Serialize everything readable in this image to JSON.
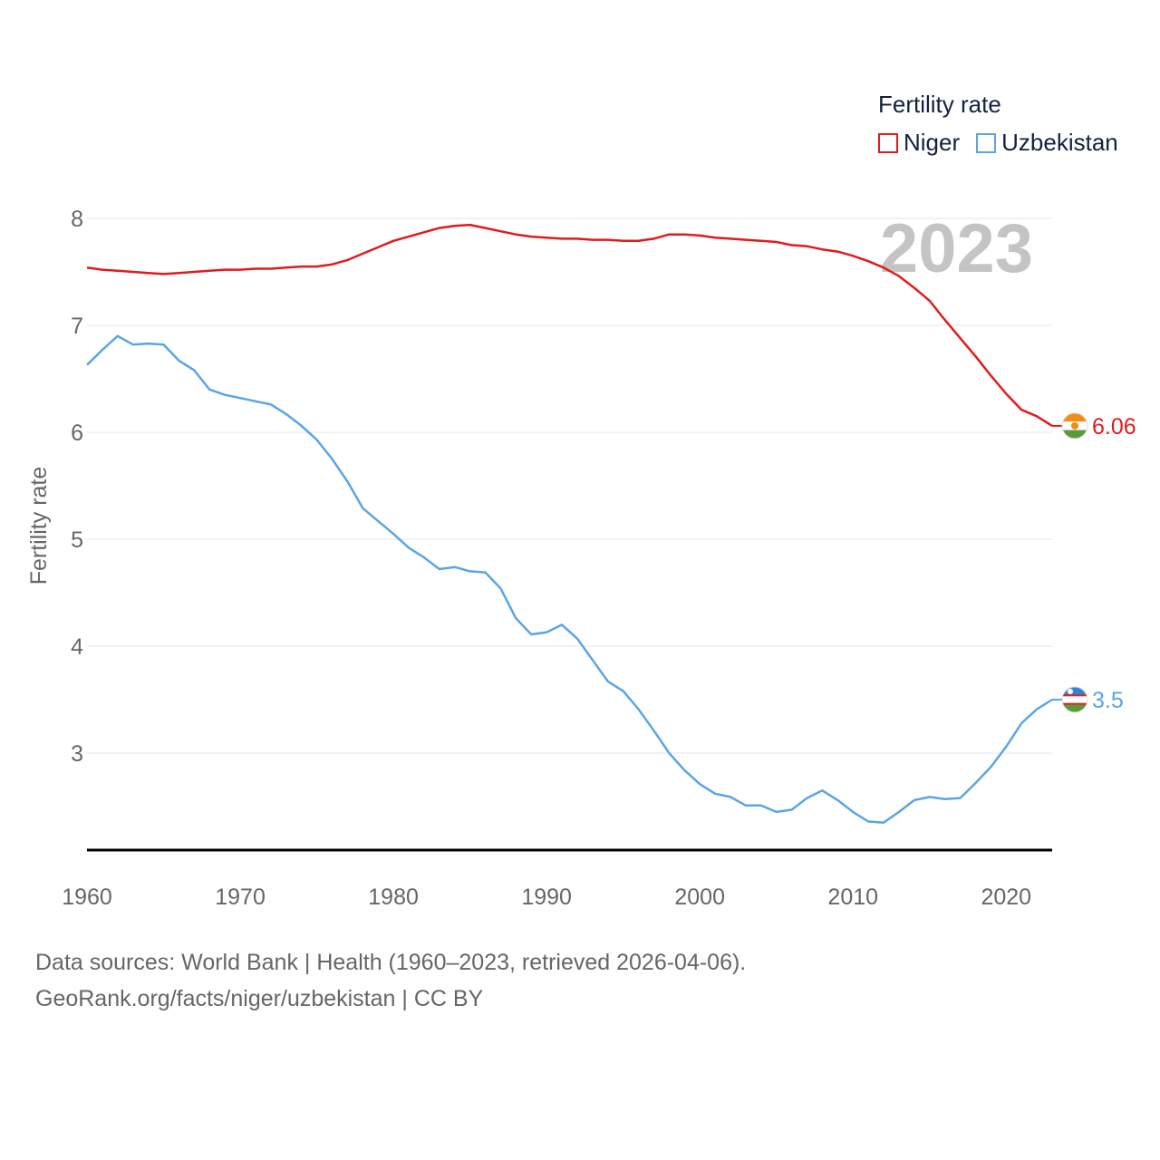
{
  "legend": {
    "title": "Fertility rate",
    "items": [
      {
        "name": "Niger",
        "color": "#e31a1c"
      },
      {
        "name": "Uzbekistan",
        "color": "#5aa5e6"
      }
    ]
  },
  "source": {
    "line1": "Data sources: World Bank | Health (1960–2023, retrieved 2026-04-06).",
    "line2": "GeoRank.org/facts/niger/uzbekistan | CC BY"
  },
  "chart_data": {
    "type": "line",
    "title": "",
    "year_label": "2023",
    "xlabel": "",
    "ylabel": "Fertility rate",
    "xlim": [
      1960,
      2023
    ],
    "ylim": [
      2.1,
      8.2
    ],
    "xticks": [
      1960,
      1970,
      1980,
      1990,
      2000,
      2010,
      2020
    ],
    "yticks": [
      3,
      4,
      5,
      6,
      7,
      8
    ],
    "grid": true,
    "legend_position": "top-right",
    "x": [
      1960,
      1961,
      1962,
      1963,
      1964,
      1965,
      1966,
      1967,
      1968,
      1969,
      1970,
      1971,
      1972,
      1973,
      1974,
      1975,
      1976,
      1977,
      1978,
      1979,
      1980,
      1981,
      1982,
      1983,
      1984,
      1985,
      1986,
      1987,
      1988,
      1989,
      1990,
      1991,
      1992,
      1993,
      1994,
      1995,
      1996,
      1997,
      1998,
      1999,
      2000,
      2001,
      2002,
      2003,
      2004,
      2005,
      2006,
      2007,
      2008,
      2009,
      2010,
      2011,
      2012,
      2013,
      2014,
      2015,
      2016,
      2017,
      2018,
      2019,
      2020,
      2021,
      2022,
      2023
    ],
    "series": [
      {
        "name": "Niger",
        "color": "#e31a1c",
        "end_label": "6.06",
        "flag": "niger",
        "values": [
          7.54,
          7.52,
          7.51,
          7.5,
          7.49,
          7.48,
          7.49,
          7.5,
          7.51,
          7.52,
          7.52,
          7.53,
          7.53,
          7.54,
          7.55,
          7.55,
          7.57,
          7.61,
          7.67,
          7.73,
          7.79,
          7.83,
          7.87,
          7.91,
          7.93,
          7.94,
          7.91,
          7.88,
          7.85,
          7.83,
          7.82,
          7.81,
          7.81,
          7.8,
          7.8,
          7.79,
          7.79,
          7.81,
          7.85,
          7.85,
          7.84,
          7.82,
          7.81,
          7.8,
          7.79,
          7.78,
          7.75,
          7.74,
          7.71,
          7.69,
          7.65,
          7.6,
          7.54,
          7.46,
          7.35,
          7.23,
          7.05,
          6.88,
          6.71,
          6.53,
          6.36,
          6.21,
          6.15,
          6.06
        ]
      },
      {
        "name": "Uzbekistan",
        "color": "#5aa5e6",
        "end_label": "3.5",
        "flag": "uzbekistan",
        "values": [
          6.63,
          6.77,
          6.9,
          6.82,
          6.83,
          6.82,
          6.67,
          6.58,
          6.4,
          6.35,
          6.32,
          6.29,
          6.26,
          6.17,
          6.06,
          5.93,
          5.75,
          5.54,
          5.29,
          5.17,
          5.05,
          4.92,
          4.83,
          4.72,
          4.74,
          4.7,
          4.69,
          4.54,
          4.26,
          4.11,
          4.13,
          4.2,
          4.07,
          3.87,
          3.67,
          3.58,
          3.41,
          3.21,
          3.0,
          2.84,
          2.71,
          2.62,
          2.59,
          2.51,
          2.51,
          2.45,
          2.47,
          2.58,
          2.65,
          2.56,
          2.45,
          2.36,
          2.35,
          2.45,
          2.56,
          2.59,
          2.57,
          2.58,
          2.72,
          2.87,
          3.06,
          3.28,
          3.41,
          3.5
        ]
      }
    ]
  }
}
